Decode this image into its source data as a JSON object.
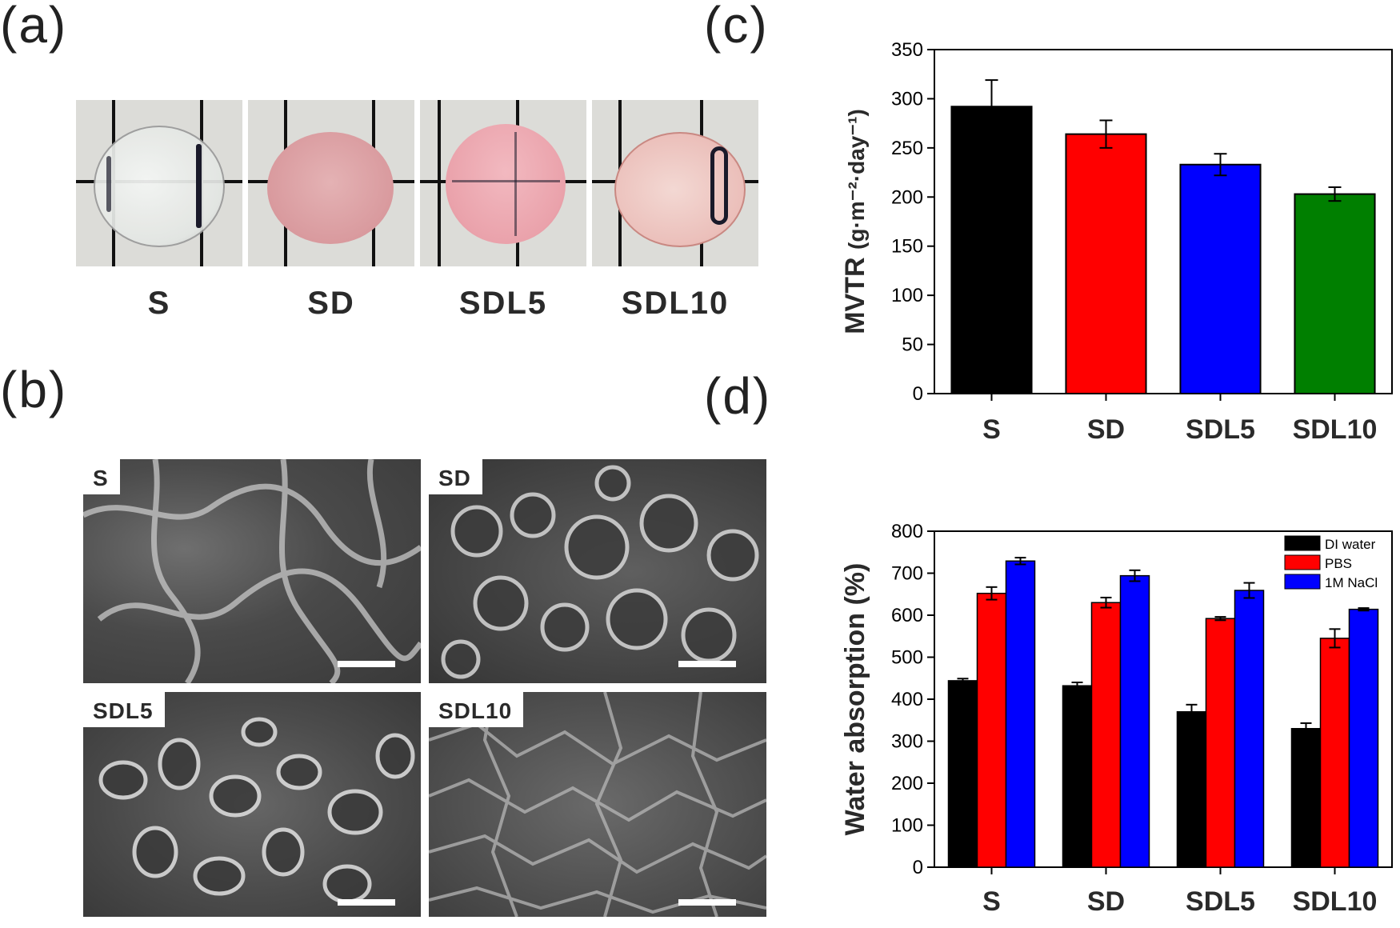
{
  "panels": {
    "a": {
      "label": "(a)",
      "samples": [
        "S",
        "SD",
        "SDL5",
        "SDL10"
      ]
    },
    "b": {
      "label": "(b)",
      "tags": [
        "S",
        "SD",
        "SDL5",
        "SDL10"
      ]
    },
    "c": {
      "label": "(c)"
    },
    "d": {
      "label": "(d)"
    }
  },
  "colors": {
    "black": "#000000",
    "red": "#ff0000",
    "blue": "#0000ff",
    "green": "#007f00"
  },
  "chart_data": [
    {
      "type": "bar",
      "panel": "c",
      "categories": [
        "S",
        "SD",
        "SDL5",
        "SDL10"
      ],
      "values": [
        292,
        264,
        233,
        203
      ],
      "errors": [
        27,
        14,
        11,
        7
      ],
      "bar_colors": [
        "#000000",
        "#ff0000",
        "#0000ff",
        "#007f00"
      ],
      "ylabel_main": "MVTR",
      "ylabel_units": "(g·m⁻²·day⁻¹)",
      "ylim": [
        0,
        350
      ],
      "yticks": [
        0,
        50,
        100,
        150,
        200,
        250,
        300,
        350
      ],
      "grid": false
    },
    {
      "type": "bar",
      "panel": "d",
      "categories": [
        "S",
        "SD",
        "SDL5",
        "SDL10"
      ],
      "series": [
        {
          "name": "DI water",
          "color": "#000000",
          "values": [
            444,
            432,
            370,
            330
          ],
          "errors": [
            5,
            8,
            17,
            13
          ]
        },
        {
          "name": "PBS",
          "color": "#ff0000",
          "values": [
            652,
            630,
            592,
            545
          ],
          "errors": [
            15,
            12,
            4,
            22
          ]
        },
        {
          "name": "1M NaCl",
          "color": "#0000ff",
          "values": [
            729,
            694,
            659,
            614
          ],
          "errors": [
            8,
            13,
            18,
            3
          ]
        }
      ],
      "ylabel": "Water absorption (%)",
      "ylim": [
        0,
        800
      ],
      "yticks": [
        0,
        100,
        200,
        300,
        400,
        500,
        600,
        700,
        800
      ],
      "legend_position": "top-right",
      "grid": false
    }
  ]
}
